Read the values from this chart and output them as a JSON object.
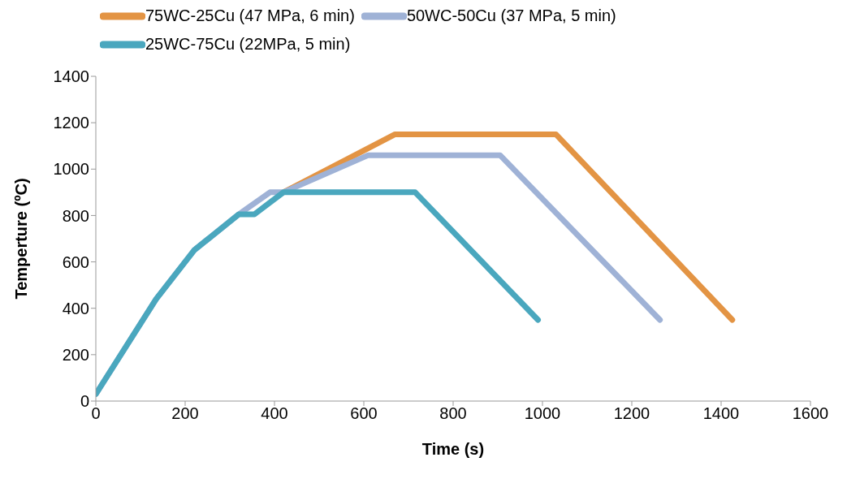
{
  "chart_data": {
    "type": "line",
    "xlabel": "Time (s)",
    "ylabel": "Temperture (ºC)",
    "xlim": [
      0,
      1600
    ],
    "xticks": [
      0,
      200,
      400,
      600,
      800,
      1000,
      1200,
      1400,
      1600
    ],
    "ylim": [
      0,
      1400
    ],
    "yticks": [
      0,
      200,
      400,
      600,
      800,
      1000,
      1200,
      1400
    ],
    "grid": false,
    "legend": "top",
    "marker": "none",
    "line_style": "solid",
    "series": [
      {
        "name": "75WC-25Cu (47 MPa, 6 min)",
        "color": "#e39444",
        "x": [
          420,
          670,
          1030,
          1425
        ],
        "values": [
          900,
          1150,
          1150,
          350
        ]
      },
      {
        "name": "50WC-50Cu (37 MPa, 5 min)",
        "color": "#9fb2d6",
        "x": [
          0,
          135,
          220,
          320,
          390,
          420,
          610,
          905,
          1263
        ],
        "values": [
          30,
          440,
          650,
          805,
          900,
          900,
          1060,
          1060,
          350
        ]
      },
      {
        "name": "25WC-75Cu (22MPa, 5 min)",
        "color": "#4aa7be",
        "x": [
          0,
          135,
          220,
          320,
          355,
          420,
          715,
          990
        ],
        "values": [
          30,
          440,
          650,
          805,
          805,
          900,
          900,
          350
        ]
      }
    ]
  }
}
